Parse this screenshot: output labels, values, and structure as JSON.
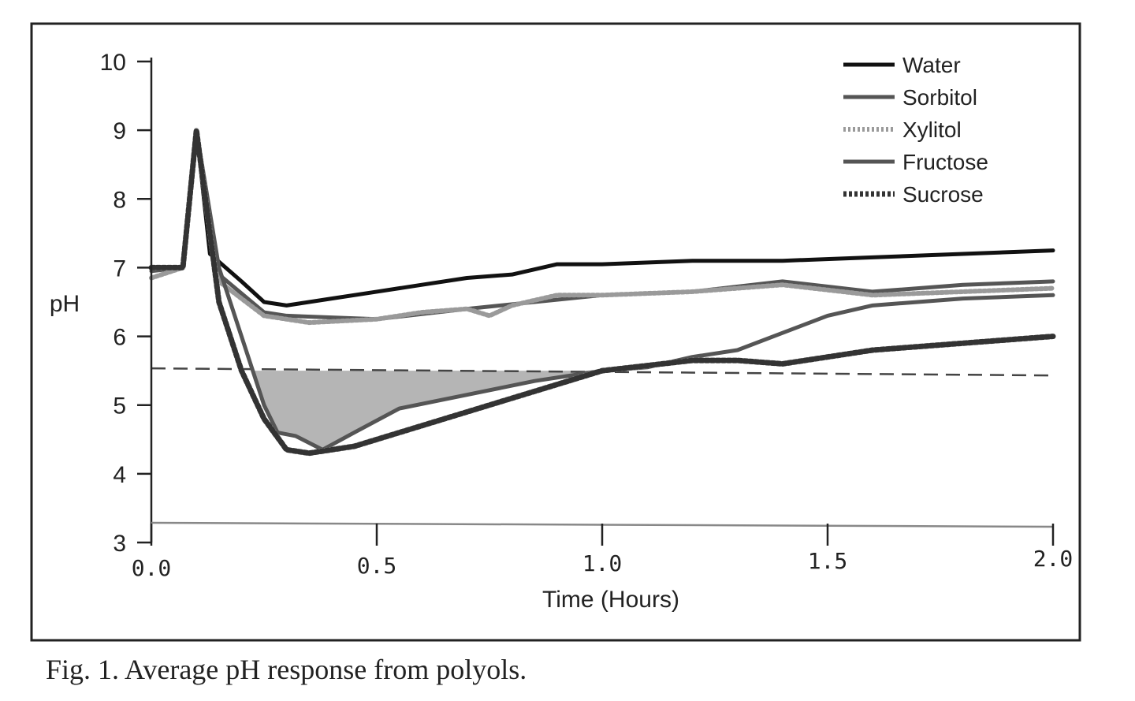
{
  "chart_data": {
    "type": "line",
    "title": "",
    "xlabel": "Time (Hours)",
    "ylabel": "pH",
    "xlim": [
      0,
      2.0
    ],
    "ylim": [
      3,
      10
    ],
    "xticks": [
      "0.0",
      "0.5",
      "1.0",
      "1.5",
      "2.0"
    ],
    "xtick_values": [
      0,
      0.5,
      1.0,
      1.5,
      2.0
    ],
    "yticks": [
      "3",
      "4",
      "5",
      "6",
      "7",
      "8",
      "9",
      "10"
    ],
    "ytick_values": [
      3,
      4,
      5,
      6,
      7,
      8,
      9,
      10
    ],
    "grid": false,
    "legend_position": "top-right",
    "reference_line": {
      "y": 5.5,
      "style": "dashed"
    },
    "shaded_region": "area between pH 5.5 and Fructose curve where below 5.5",
    "series": [
      {
        "name": "Water",
        "color": "#111111",
        "style": "solid",
        "x": [
          0,
          0.07,
          0.1,
          0.13,
          0.2,
          0.25,
          0.3,
          0.4,
          0.5,
          0.6,
          0.7,
          0.8,
          0.9,
          1.0,
          1.2,
          1.4,
          1.6,
          1.8,
          2.0
        ],
        "y": [
          7.0,
          7.0,
          9.0,
          7.2,
          6.8,
          6.5,
          6.45,
          6.55,
          6.65,
          6.75,
          6.85,
          6.9,
          7.05,
          7.05,
          7.1,
          7.1,
          7.15,
          7.2,
          7.25
        ]
      },
      {
        "name": "Sorbitol",
        "color": "#555555",
        "style": "solid",
        "x": [
          0,
          0.07,
          0.1,
          0.15,
          0.25,
          0.3,
          0.5,
          0.7,
          1.0,
          1.2,
          1.4,
          1.6,
          1.8,
          2.0
        ],
        "y": [
          6.95,
          7.0,
          9.0,
          6.9,
          6.35,
          6.3,
          6.25,
          6.4,
          6.6,
          6.65,
          6.8,
          6.65,
          6.75,
          6.8
        ]
      },
      {
        "name": "Xylitol",
        "color": "#9a9a9a",
        "style": "dotted",
        "x": [
          0,
          0.07,
          0.1,
          0.15,
          0.25,
          0.35,
          0.5,
          0.6,
          0.7,
          0.75,
          0.8,
          0.9,
          1.0,
          1.2,
          1.4,
          1.6,
          1.8,
          2.0
        ],
        "y": [
          6.85,
          7.0,
          9.0,
          6.8,
          6.3,
          6.2,
          6.25,
          6.35,
          6.4,
          6.3,
          6.45,
          6.6,
          6.6,
          6.65,
          6.75,
          6.6,
          6.65,
          6.7
        ]
      },
      {
        "name": "Fructose",
        "color": "#555555",
        "style": "solid",
        "x": [
          0,
          0.07,
          0.1,
          0.15,
          0.2,
          0.25,
          0.28,
          0.32,
          0.38,
          0.45,
          0.55,
          0.7,
          0.85,
          1.0,
          1.1,
          1.2,
          1.3,
          1.4,
          1.5,
          1.6,
          1.8,
          2.0
        ],
        "y": [
          7.0,
          7.0,
          9.0,
          7.0,
          6.0,
          5.0,
          4.6,
          4.55,
          4.35,
          4.6,
          4.95,
          5.15,
          5.35,
          5.5,
          5.55,
          5.7,
          5.8,
          6.05,
          6.3,
          6.45,
          6.55,
          6.6
        ]
      },
      {
        "name": "Sucrose",
        "color": "#333333",
        "style": "checkered",
        "x": [
          0,
          0.07,
          0.1,
          0.15,
          0.2,
          0.25,
          0.3,
          0.35,
          0.45,
          0.55,
          0.7,
          0.85,
          1.0,
          1.2,
          1.3,
          1.4,
          1.5,
          1.6,
          1.8,
          2.0
        ],
        "y": [
          7.0,
          7.0,
          9.0,
          6.5,
          5.5,
          4.8,
          4.35,
          4.3,
          4.4,
          4.6,
          4.9,
          5.2,
          5.5,
          5.65,
          5.65,
          5.6,
          5.7,
          5.8,
          5.9,
          6.0
        ]
      }
    ]
  },
  "caption": "Fig. 1. Average pH response from polyols."
}
